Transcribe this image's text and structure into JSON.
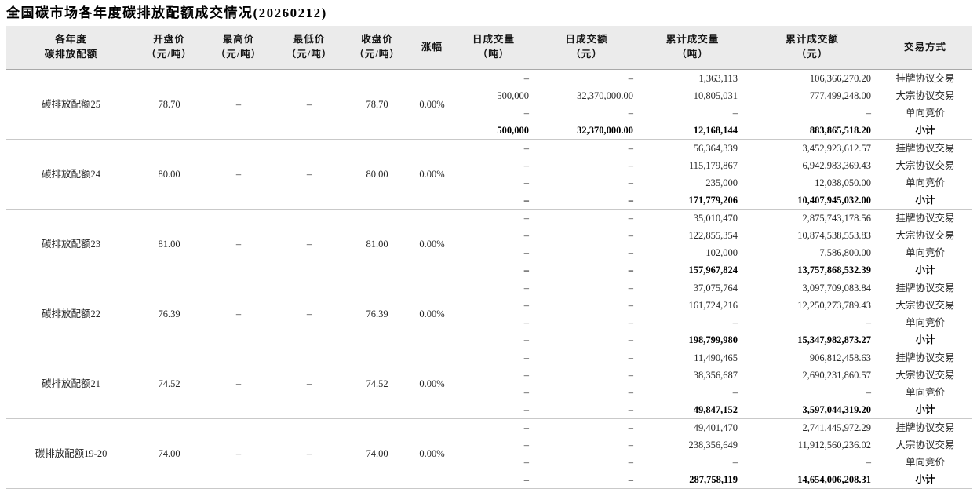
{
  "colors": {
    "header_bg": "#ebebeb",
    "header_border": "#a9a9a9",
    "group_border": "#c9c9c9",
    "text": "#282828"
  },
  "chart_data": {
    "type": "table",
    "title": "全国碳市场各年度碳排放配额成交情况(20260212)",
    "columns": [
      {
        "line1": "各年度",
        "line2": "碳排放配额"
      },
      {
        "line1": "开盘价",
        "line2": "（元/吨）"
      },
      {
        "line1": "最高价",
        "line2": "（元/吨）"
      },
      {
        "line1": "最低价",
        "line2": "（元/吨）"
      },
      {
        "line1": "收盘价",
        "line2": "（元/吨）"
      },
      {
        "line1": "涨幅",
        "line2": ""
      },
      {
        "line1": "日成交量",
        "line2": "（吨）"
      },
      {
        "line1": "日成交额",
        "line2": "（元）"
      },
      {
        "line1": "累计成交量",
        "line2": "（吨）"
      },
      {
        "line1": "累计成交额",
        "line2": "（元）"
      },
      {
        "line1": "交易方式",
        "line2": ""
      }
    ],
    "groups": [
      {
        "name": "碳排放配额25",
        "open": "78.70",
        "high": "–",
        "low": "–",
        "close": "78.70",
        "change": "0.00%",
        "rows": [
          {
            "daily_vol": "–",
            "daily_amt": "–",
            "cum_vol": "1,363,113",
            "cum_amt": "106,366,270.20",
            "method": "挂牌协议交易",
            "bold": false
          },
          {
            "daily_vol": "500,000",
            "daily_amt": "32,370,000.00",
            "cum_vol": "10,805,031",
            "cum_amt": "777,499,248.00",
            "method": "大宗协议交易",
            "bold": false
          },
          {
            "daily_vol": "–",
            "daily_amt": "–",
            "cum_vol": "–",
            "cum_amt": "–",
            "method": "单向竞价",
            "bold": false
          },
          {
            "daily_vol": "500,000",
            "daily_amt": "32,370,000.00",
            "cum_vol": "12,168,144",
            "cum_amt": "883,865,518.20",
            "method": "小计",
            "bold": true
          }
        ]
      },
      {
        "name": "碳排放配额24",
        "open": "80.00",
        "high": "–",
        "low": "–",
        "close": "80.00",
        "change": "0.00%",
        "rows": [
          {
            "daily_vol": "–",
            "daily_amt": "–",
            "cum_vol": "56,364,339",
            "cum_amt": "3,452,923,612.57",
            "method": "挂牌协议交易",
            "bold": false
          },
          {
            "daily_vol": "–",
            "daily_amt": "–",
            "cum_vol": "115,179,867",
            "cum_amt": "6,942,983,369.43",
            "method": "大宗协议交易",
            "bold": false
          },
          {
            "daily_vol": "–",
            "daily_amt": "–",
            "cum_vol": "235,000",
            "cum_amt": "12,038,050.00",
            "method": "单向竞价",
            "bold": false
          },
          {
            "daily_vol": "–",
            "daily_amt": "–",
            "cum_vol": "171,779,206",
            "cum_amt": "10,407,945,032.00",
            "method": "小计",
            "bold": true
          }
        ]
      },
      {
        "name": "碳排放配额23",
        "open": "81.00",
        "high": "–",
        "low": "–",
        "close": "81.00",
        "change": "0.00%",
        "rows": [
          {
            "daily_vol": "–",
            "daily_amt": "–",
            "cum_vol": "35,010,470",
            "cum_amt": "2,875,743,178.56",
            "method": "挂牌协议交易",
            "bold": false
          },
          {
            "daily_vol": "–",
            "daily_amt": "–",
            "cum_vol": "122,855,354",
            "cum_amt": "10,874,538,553.83",
            "method": "大宗协议交易",
            "bold": false
          },
          {
            "daily_vol": "–",
            "daily_amt": "–",
            "cum_vol": "102,000",
            "cum_amt": "7,586,800.00",
            "method": "单向竞价",
            "bold": false
          },
          {
            "daily_vol": "–",
            "daily_amt": "–",
            "cum_vol": "157,967,824",
            "cum_amt": "13,757,868,532.39",
            "method": "小计",
            "bold": true
          }
        ]
      },
      {
        "name": "碳排放配额22",
        "open": "76.39",
        "high": "–",
        "low": "–",
        "close": "76.39",
        "change": "0.00%",
        "rows": [
          {
            "daily_vol": "–",
            "daily_amt": "–",
            "cum_vol": "37,075,764",
            "cum_amt": "3,097,709,083.84",
            "method": "挂牌协议交易",
            "bold": false
          },
          {
            "daily_vol": "–",
            "daily_amt": "–",
            "cum_vol": "161,724,216",
            "cum_amt": "12,250,273,789.43",
            "method": "大宗协议交易",
            "bold": false
          },
          {
            "daily_vol": "–",
            "daily_amt": "–",
            "cum_vol": "–",
            "cum_amt": "–",
            "method": "单向竞价",
            "bold": false
          },
          {
            "daily_vol": "–",
            "daily_amt": "–",
            "cum_vol": "198,799,980",
            "cum_amt": "15,347,982,873.27",
            "method": "小计",
            "bold": true
          }
        ]
      },
      {
        "name": "碳排放配额21",
        "open": "74.52",
        "high": "–",
        "low": "–",
        "close": "74.52",
        "change": "0.00%",
        "rows": [
          {
            "daily_vol": "–",
            "daily_amt": "–",
            "cum_vol": "11,490,465",
            "cum_amt": "906,812,458.63",
            "method": "挂牌协议交易",
            "bold": false
          },
          {
            "daily_vol": "–",
            "daily_amt": "–",
            "cum_vol": "38,356,687",
            "cum_amt": "2,690,231,860.57",
            "method": "大宗协议交易",
            "bold": false
          },
          {
            "daily_vol": "–",
            "daily_amt": "–",
            "cum_vol": "–",
            "cum_amt": "–",
            "method": "单向竞价",
            "bold": false
          },
          {
            "daily_vol": "–",
            "daily_amt": "–",
            "cum_vol": "49,847,152",
            "cum_amt": "3,597,044,319.20",
            "method": "小计",
            "bold": true
          }
        ]
      },
      {
        "name": "碳排放配额19-20",
        "open": "74.00",
        "high": "–",
        "low": "–",
        "close": "74.00",
        "change": "0.00%",
        "rows": [
          {
            "daily_vol": "–",
            "daily_amt": "–",
            "cum_vol": "49,401,470",
            "cum_amt": "2,741,445,972.29",
            "method": "挂牌协议交易",
            "bold": false
          },
          {
            "daily_vol": "–",
            "daily_amt": "–",
            "cum_vol": "238,356,649",
            "cum_amt": "11,912,560,236.02",
            "method": "大宗协议交易",
            "bold": false
          },
          {
            "daily_vol": "–",
            "daily_amt": "–",
            "cum_vol": "–",
            "cum_amt": "–",
            "method": "单向竞价",
            "bold": false
          },
          {
            "daily_vol": "–",
            "daily_amt": "–",
            "cum_vol": "287,758,119",
            "cum_amt": "14,654,006,208.31",
            "method": "小计",
            "bold": true
          }
        ]
      }
    ]
  }
}
